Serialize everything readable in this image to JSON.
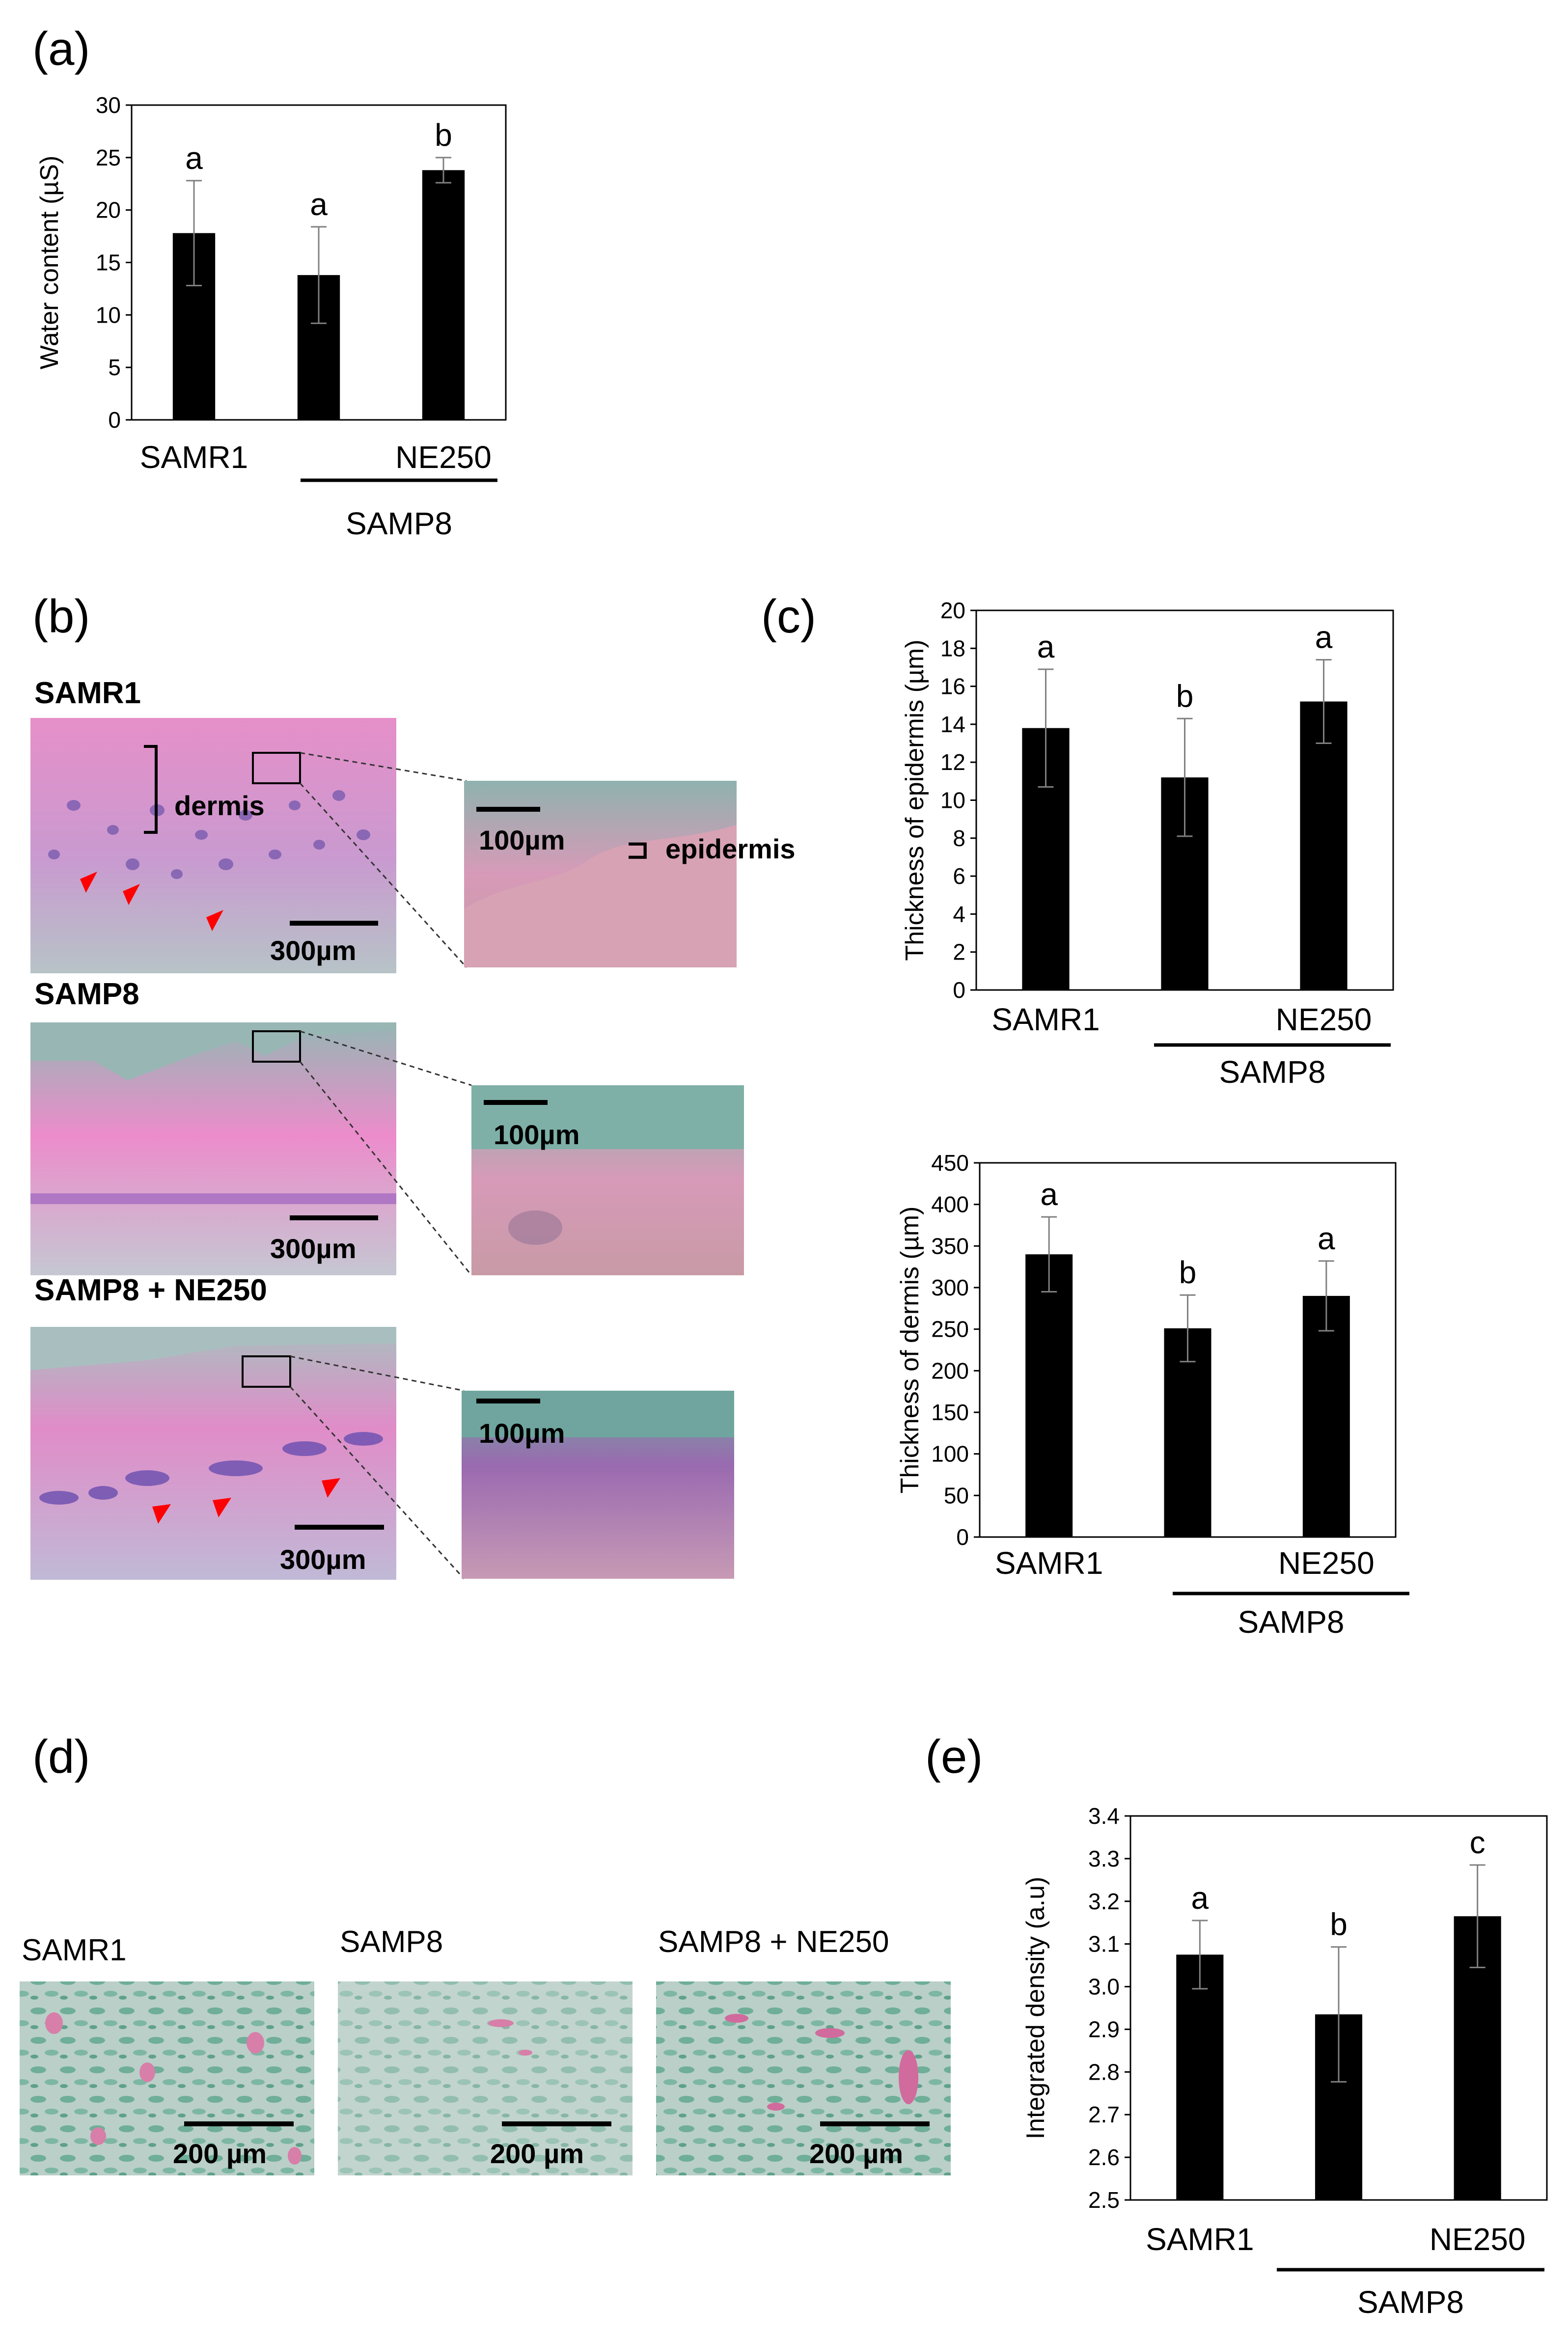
{
  "panels": {
    "a": "(a)",
    "b": "(b)",
    "c": "(c)",
    "d": "(d)",
    "e": "(e)"
  },
  "colors": {
    "bar": "#000000",
    "error_bar": "#808080",
    "arrowhead": "#ff0000"
  },
  "histology_b": {
    "rows": [
      {
        "label": "SAMR1",
        "scale_left": "300µm",
        "scale_right": "100µm",
        "annotations": [
          "dermis",
          "epidermis"
        ],
        "arrowheads": 3
      },
      {
        "label": "SAMP8",
        "scale_left": "300µm",
        "scale_right": "100µm",
        "annotations": [],
        "arrowheads": 0
      },
      {
        "label": "SAMP8 + NE250",
        "scale_left": "300µm",
        "scale_right": "100µm",
        "annotations": [],
        "arrowheads": 3
      }
    ]
  },
  "histology_d": {
    "images": [
      {
        "label": "SAMR1",
        "scale": "200 µm"
      },
      {
        "label": "SAMP8",
        "scale": "200 µm"
      },
      {
        "label": "SAMP8 + NE250",
        "scale": "200 µm"
      }
    ]
  },
  "chart_data": [
    {
      "panel": "a",
      "type": "bar",
      "categories": [
        "SAMR1",
        "",
        "NE250"
      ],
      "group_label": "SAMP8",
      "values": [
        17.8,
        13.8,
        23.8
      ],
      "errors": [
        5.0,
        4.6,
        1.2
      ],
      "significance": [
        "a",
        "a",
        "b"
      ],
      "ylabel": "Water content (µS)",
      "ylim": [
        0,
        30
      ],
      "yticks": [
        "0",
        "5",
        "10",
        "15",
        "20",
        "25",
        "30"
      ]
    },
    {
      "panel": "c-top",
      "type": "bar",
      "categories": [
        "SAMR1",
        "",
        "NE250"
      ],
      "group_label": "SAMP8",
      "values": [
        13.8,
        11.2,
        15.2
      ],
      "errors": [
        3.1,
        3.1,
        2.2
      ],
      "significance": [
        "a",
        "b",
        "a"
      ],
      "ylabel": "Thickness of epidermis (µm)",
      "ylim": [
        0,
        20
      ],
      "yticks": [
        "0",
        "2",
        "4",
        "6",
        "8",
        "10",
        "12",
        "14",
        "16",
        "18",
        "20"
      ]
    },
    {
      "panel": "c-bottom",
      "type": "bar",
      "categories": [
        "SAMR1",
        "",
        "NE250"
      ],
      "group_label": "SAMP8",
      "values": [
        340,
        251,
        290
      ],
      "errors": [
        45,
        40,
        42
      ],
      "significance": [
        "a",
        "b",
        "a"
      ],
      "ylabel": "Thickness of dermis (µm)",
      "ylim": [
        0,
        450
      ],
      "yticks": [
        "0",
        "50",
        "100",
        "150",
        "200",
        "250",
        "300",
        "350",
        "400",
        "450"
      ]
    },
    {
      "panel": "e",
      "type": "bar",
      "categories": [
        "SAMR1",
        "",
        "NE250"
      ],
      "group_label": "SAMP8",
      "values": [
        3.075,
        2.935,
        3.165
      ],
      "errors": [
        0.08,
        0.158,
        0.12
      ],
      "significance": [
        "a",
        "b",
        "c"
      ],
      "ylabel": "Integrated density (a.u)",
      "ylim": [
        2.5,
        3.4
      ],
      "yticks": [
        "2.5",
        "2.6",
        "2.7",
        "2.8",
        "2.9",
        "3.0",
        "3.1",
        "3.2",
        "3.3",
        "3.4"
      ]
    }
  ]
}
